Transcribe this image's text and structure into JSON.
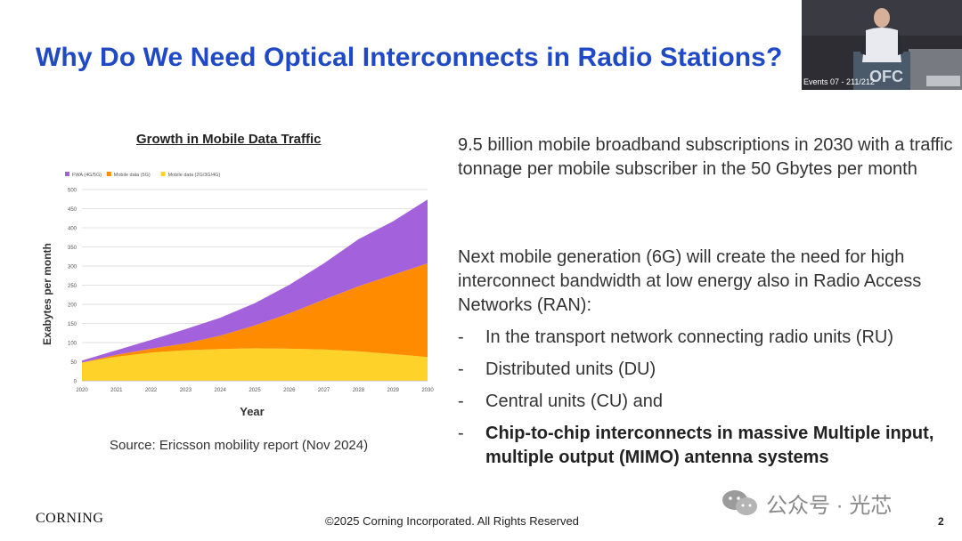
{
  "slide": {
    "title": "Why Do We Need Optical Interconnects in Radio Stations?",
    "page_number": "2",
    "copyright": "©2025 Corning Incorporated. All Rights Reserved",
    "logo_text": "CORNING",
    "watermark_text": "公众号 · 光芯"
  },
  "video_inset": {
    "caption": "Events 07 - 211/212",
    "sign_text": "OFC"
  },
  "chart": {
    "title": "Growth in Mobile Data Traffic",
    "source": "Source: Ericsson mobility report (Nov 2024)"
  },
  "chart_data": {
    "type": "area",
    "stacked": true,
    "x": [
      2020,
      2021,
      2022,
      2023,
      2024,
      2025,
      2026,
      2027,
      2028,
      2029,
      2030
    ],
    "series": [
      {
        "name": "Mobile data (2G/3G/4G)",
        "color": "#ffd22a",
        "values": [
          48,
          63,
          74,
          80,
          83,
          85,
          84,
          82,
          77,
          70,
          62
        ]
      },
      {
        "name": "Mobile data (5G)",
        "color": "#ff8c00",
        "values": [
          0,
          5,
          10,
          18,
          35,
          60,
          92,
          130,
          170,
          207,
          245
        ]
      },
      {
        "name": "FWA (4G/5G)",
        "color": "#a461dc",
        "values": [
          5,
          12,
          23,
          37,
          47,
          58,
          75,
          95,
          123,
          140,
          167
        ]
      }
    ],
    "xlabel": "Year",
    "ylabel": "Exabytes per month",
    "ylim": [
      0,
      500
    ],
    "yticks": [
      0,
      50,
      100,
      150,
      200,
      250,
      300,
      350,
      400,
      450,
      500
    ],
    "grid": true,
    "legend": "top-left"
  },
  "content": {
    "paragraph_1": "9.5 billion mobile broadband subscriptions in 2030 with a traffic tonnage per mobile subscriber in the 50 Gbytes per month",
    "paragraph_2": "Next mobile generation (6G) will create the need for high interconnect bandwidth at low energy also in Radio Access Networks (RAN):",
    "bullets": [
      "In the transport network connecting radio units (RU)",
      "Distributed units (DU)",
      "Central units (CU) and",
      "Chip-to-chip interconnects in massive Multiple input, multiple output (MIMO) antenna systems"
    ],
    "bullet_marker": "-"
  }
}
